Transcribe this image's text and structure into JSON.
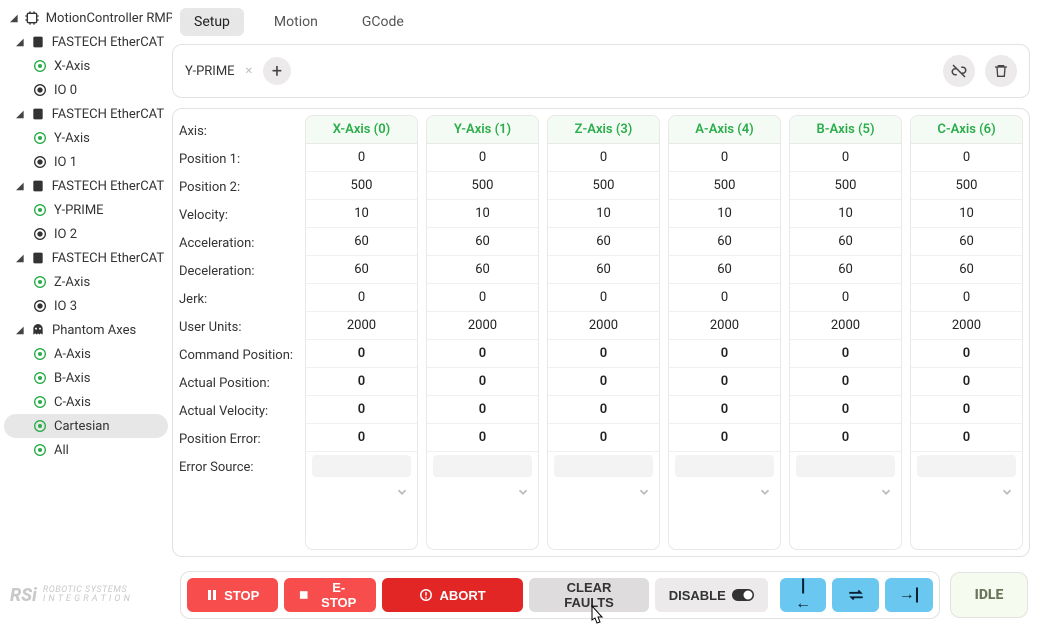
{
  "tabs": {
    "setup": "Setup",
    "motion": "Motion",
    "gcode": "GCode",
    "active": "setup"
  },
  "selectedAxisChip": "Y-PRIME",
  "tree": [
    {
      "type": "root",
      "label": "MotionController RMP",
      "icon": "controller"
    },
    {
      "type": "node",
      "label": "FASTECH EtherCAT",
      "icon": "device"
    },
    {
      "type": "leaf",
      "label": "X-Axis",
      "icon": "axis"
    },
    {
      "type": "leaf",
      "label": "IO 0",
      "icon": "io"
    },
    {
      "type": "node",
      "label": "FASTECH EtherCAT",
      "icon": "device"
    },
    {
      "type": "leaf",
      "label": "Y-Axis",
      "icon": "axis"
    },
    {
      "type": "leaf",
      "label": "IO 1",
      "icon": "io"
    },
    {
      "type": "node",
      "label": "FASTECH EtherCAT",
      "icon": "device"
    },
    {
      "type": "leaf",
      "label": "Y-PRIME",
      "icon": "axis"
    },
    {
      "type": "leaf",
      "label": "IO 2",
      "icon": "io"
    },
    {
      "type": "node",
      "label": "FASTECH EtherCAT",
      "icon": "device"
    },
    {
      "type": "leaf",
      "label": "Z-Axis",
      "icon": "axis"
    },
    {
      "type": "leaf",
      "label": "IO 3",
      "icon": "io"
    },
    {
      "type": "node",
      "label": "Phantom Axes",
      "icon": "phantom"
    },
    {
      "type": "leaf",
      "label": "A-Axis",
      "icon": "axis"
    },
    {
      "type": "leaf",
      "label": "B-Axis",
      "icon": "axis"
    },
    {
      "type": "leaf",
      "label": "C-Axis",
      "icon": "axis"
    },
    {
      "type": "leaf",
      "label": "Cartesian",
      "icon": "axis",
      "selected": true
    },
    {
      "type": "leaf",
      "label": "All",
      "icon": "axis"
    }
  ],
  "rowLabels": [
    "Axis:",
    "Position 1:",
    "Position 2:",
    "Velocity:",
    "Acceleration:",
    "Deceleration:",
    "Jerk:",
    "User Units:",
    "Command Position:",
    "Actual Position:",
    "Actual Velocity:",
    "Position Error:",
    "Error Source:"
  ],
  "axes": [
    {
      "name": "X-Axis (0)",
      "vals": [
        "0",
        "500",
        "10",
        "60",
        "60",
        "0",
        "2000",
        "0",
        "0",
        "0",
        "0",
        ""
      ]
    },
    {
      "name": "Y-Axis (1)",
      "vals": [
        "0",
        "500",
        "10",
        "60",
        "60",
        "0",
        "2000",
        "0",
        "0",
        "0",
        "0",
        ""
      ]
    },
    {
      "name": "Z-Axis (3)",
      "vals": [
        "0",
        "500",
        "10",
        "60",
        "60",
        "0",
        "2000",
        "0",
        "0",
        "0",
        "0",
        ""
      ]
    },
    {
      "name": "A-Axis (4)",
      "vals": [
        "0",
        "500",
        "10",
        "60",
        "60",
        "0",
        "2000",
        "0",
        "0",
        "0",
        "0",
        ""
      ]
    },
    {
      "name": "B-Axis (5)",
      "vals": [
        "0",
        "500",
        "10",
        "60",
        "60",
        "0",
        "2000",
        "0",
        "0",
        "0",
        "0",
        ""
      ]
    },
    {
      "name": "C-Axis (6)",
      "vals": [
        "0",
        "500",
        "10",
        "60",
        "60",
        "0",
        "2000",
        "0",
        "0",
        "0",
        "0",
        ""
      ]
    }
  ],
  "boldRows": [
    8,
    9,
    10,
    11
  ],
  "buttons": {
    "stop": "STOP",
    "estop": "E-STOP",
    "abort": "ABORT",
    "clear": "CLEAR FAULTS",
    "disable": "DISABLE"
  },
  "status": "IDLE",
  "logo": {
    "brand": "RSi",
    "line1": "ROBOTIC SYSTEMS",
    "line2": "I N T E G R A T I O N"
  },
  "colors": {
    "green": "#2aad4a",
    "red": "#f84d4d",
    "redDark": "#e22525",
    "blue": "#6ac8f0",
    "greyBtn": "#eceaea",
    "border": "#e2e2e2"
  }
}
